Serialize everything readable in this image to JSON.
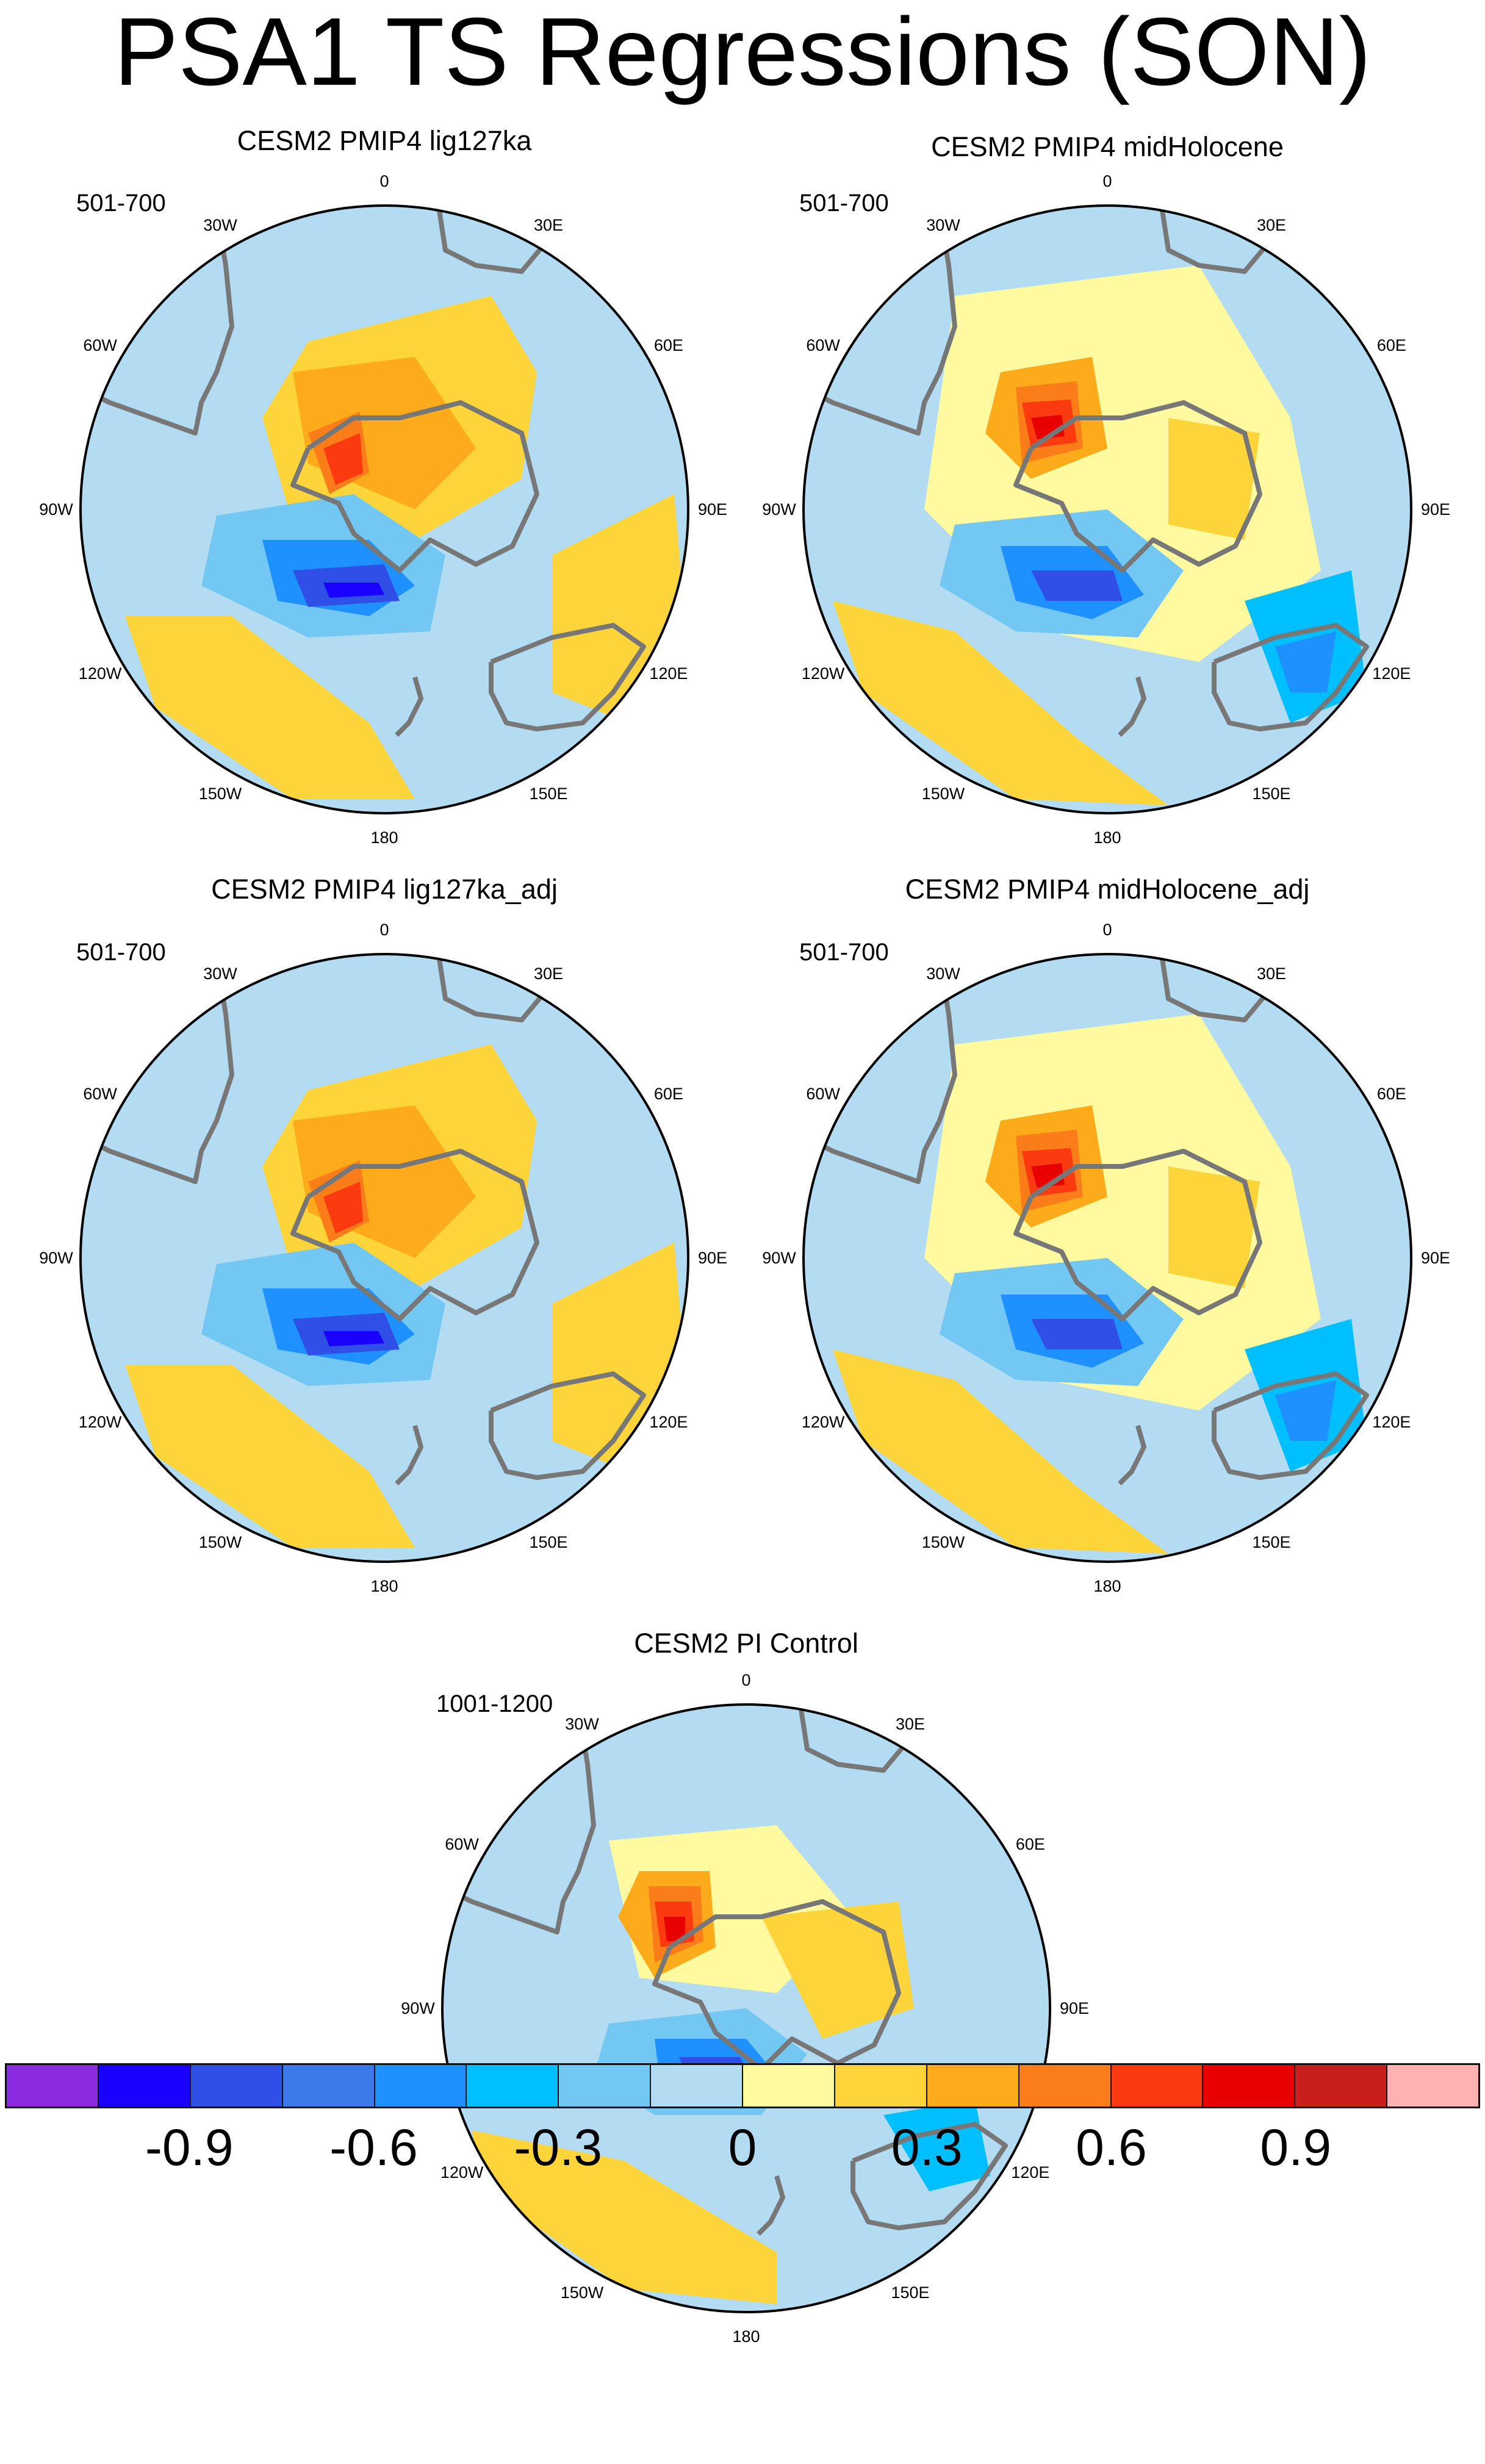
{
  "title": "PSA1 TS Regressions (SON)",
  "panels": [
    {
      "title": "CESM2 PMIP4 lig127ka",
      "period": "501-700",
      "variant": 0
    },
    {
      "title": "CESM2 PMIP4 midHolocene",
      "period": "501-700",
      "variant": 1
    },
    {
      "title": "CESM2 PMIP4 lig127ka_adj",
      "period": "501-700",
      "variant": 0
    },
    {
      "title": "CESM2 PMIP4 midHolocene_adj",
      "period": "501-700",
      "variant": 1
    },
    {
      "title": "CESM2 PI Control",
      "period": "1001-1200",
      "variant": 2
    }
  ],
  "lon_labels": [
    "0",
    "30E",
    "60E",
    "90E",
    "120E",
    "150E",
    "180",
    "150W",
    "120W",
    "90W",
    "60W",
    "30W"
  ],
  "colorbar": {
    "colors": [
      "#8a2be2",
      "#1a00ff",
      "#2f4fe6",
      "#3b7ae8",
      "#1e90ff",
      "#00bfff",
      "#73c7f3",
      "#b3dcf2",
      "#fffaa0",
      "#fdd43a",
      "#fdab1a",
      "#fb7d1a",
      "#fb3a10",
      "#e80000",
      "#c81e1e",
      "#ffb2b2"
    ],
    "labels": [
      "-0.9",
      "-0.6",
      "-0.3",
      "0",
      "0.3",
      "0.6",
      "0.9"
    ],
    "label_edges": [
      2,
      5,
      8,
      8,
      11,
      14
    ]
  }
}
